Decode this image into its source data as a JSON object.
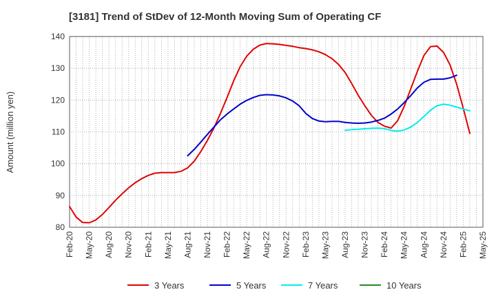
{
  "chart_data": {
    "type": "line",
    "title": "[3181]  Trend of StDev of 12-Month Moving Sum of Operating CF",
    "xlabel": "",
    "ylabel": "Amount (million yen)",
    "ylim": [
      80,
      140
    ],
    "yticks": [
      80,
      90,
      100,
      110,
      120,
      130,
      140
    ],
    "grid": true,
    "legend_position": "bottom",
    "x_tick_labels": [
      "Feb-20",
      "May-20",
      "Aug-20",
      "Nov-20",
      "Feb-21",
      "May-21",
      "Aug-21",
      "Nov-21",
      "Feb-22",
      "May-22",
      "Aug-22",
      "Nov-22",
      "Feb-23",
      "May-23",
      "Aug-23",
      "Nov-23",
      "Feb-24",
      "May-24",
      "Aug-24",
      "Nov-24",
      "Feb-25",
      "May-25"
    ],
    "x_start": "2020-02",
    "series": [
      {
        "name": "3 Years",
        "color": "#e00000",
        "values": [
          86.5,
          83.2,
          81.5,
          81.4,
          82.3,
          84.0,
          86.2,
          88.5,
          90.5,
          92.4,
          94.0,
          95.3,
          96.3,
          97.0,
          97.2,
          97.2,
          97.2,
          97.6,
          98.7,
          100.8,
          103.8,
          107.3,
          111.2,
          115.8,
          120.8,
          126.0,
          130.5,
          133.8,
          136.0,
          137.3,
          137.8,
          137.7,
          137.5,
          137.2,
          136.9,
          136.5,
          136.2,
          135.8,
          135.2,
          134.3,
          133.0,
          131.2,
          128.7,
          125.2,
          121.5,
          118.2,
          115.2,
          113.0,
          111.8,
          111.2,
          113.5,
          118.0,
          123.5,
          129.0,
          134.0,
          136.8,
          137.0,
          135.0,
          131.0,
          125.0,
          117.5,
          109.5
        ]
      },
      {
        "name": "5 Years",
        "color": "#0000cc",
        "start_index": 18,
        "values": [
          102.5,
          104.5,
          106.8,
          109.2,
          111.5,
          113.8,
          115.6,
          117.2,
          118.7,
          119.9,
          120.8,
          121.5,
          121.7,
          121.6,
          121.3,
          120.7,
          119.7,
          118.2,
          115.8,
          114.2,
          113.4,
          113.2,
          113.3,
          113.3,
          113.0,
          112.8,
          112.7,
          112.8,
          113.1,
          113.6,
          114.3,
          115.6,
          117.2,
          119.2,
          121.4,
          123.8,
          125.6,
          126.5,
          126.6,
          126.6,
          127.0,
          127.8
        ]
      },
      {
        "name": "7 Years",
        "color": "#00eeee",
        "start_index": 42,
        "values": [
          110.5,
          110.7,
          110.8,
          111.0,
          111.1,
          111.2,
          111.0,
          110.5,
          110.2,
          110.6,
          111.5,
          113.0,
          114.8,
          116.8,
          118.2,
          118.7,
          118.4,
          117.8,
          117.2,
          116.6
        ]
      },
      {
        "name": "10 Years",
        "color": "#228b22",
        "values": []
      }
    ]
  }
}
